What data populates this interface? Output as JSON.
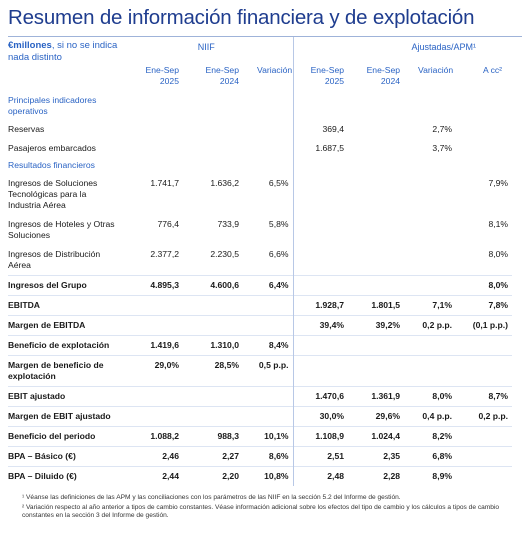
{
  "header": {
    "title": "Resumen de información financiera y de explotación",
    "unit_bold": "€millones",
    "unit_rest": ", si no se indica nada distinto",
    "group_niif": "NIIF",
    "group_adjusted": "Ajustadas/APM¹",
    "columns": [
      "Ene-Sep 2025",
      "Ene-Sep 2024",
      "Variación",
      "Ene-Sep 2025",
      "Ene-Sep 2024",
      "Variación",
      "A cc²"
    ]
  },
  "table": {
    "rows": [
      {
        "section": "Principales indicadores operativos"
      },
      {
        "label": "Reservas",
        "values": [
          null,
          null,
          null,
          "369,4",
          null,
          "2,7%",
          null
        ]
      },
      {
        "label": "Pasajeros embarcados",
        "values": [
          null,
          null,
          null,
          "1.687,5",
          null,
          "3,7%",
          null
        ]
      },
      {
        "section": "Resultados financieros"
      },
      {
        "label": "Ingresos de Soluciones Tecnológicas para la Industria Aérea",
        "values": [
          "1.741,7",
          "1.636,2",
          "6,5%",
          null,
          null,
          null,
          "7,9%"
        ]
      },
      {
        "label": "Ingresos de Hoteles y Otras Soluciones",
        "values": [
          "776,4",
          "733,9",
          "5,8%",
          null,
          null,
          null,
          "8,1%"
        ]
      },
      {
        "label": "Ingresos de Distribución Aérea",
        "values": [
          "2.377,2",
          "2.230,5",
          "6,6%",
          null,
          null,
          null,
          "8,0%"
        ]
      },
      {
        "label": "Ingresos del Grupo",
        "bold": true,
        "values": [
          "4.895,3",
          "4.600,6",
          "6,4%",
          null,
          null,
          null,
          "8,0%"
        ]
      },
      {
        "label": "EBITDA",
        "bold": true,
        "values": [
          null,
          null,
          null,
          "1.928,7",
          "1.801,5",
          "7,1%",
          "7,8%"
        ]
      },
      {
        "label": "Margen de EBITDA",
        "bold": true,
        "values": [
          null,
          null,
          null,
          "39,4%",
          "39,2%",
          "0,2 p.p.",
          "(0,1 p.p.)"
        ]
      },
      {
        "label": "Beneficio de explotación",
        "bold": true,
        "values": [
          "1.419,6",
          "1.310,0",
          "8,4%",
          null,
          null,
          null,
          null
        ]
      },
      {
        "label": "Margen de beneficio de explotación",
        "bold": true,
        "values": [
          "29,0%",
          "28,5%",
          "0,5 p.p.",
          null,
          null,
          null,
          null
        ]
      },
      {
        "label": "EBIT ajustado",
        "bold": true,
        "values": [
          null,
          null,
          null,
          "1.470,6",
          "1.361,9",
          "8,0%",
          "8,7%"
        ]
      },
      {
        "label": "Margen de EBIT ajustado",
        "bold": true,
        "values": [
          null,
          null,
          null,
          "30,0%",
          "29,6%",
          "0,4 p.p.",
          "0,2 p.p."
        ]
      },
      {
        "label": "Beneficio del periodo",
        "bold": true,
        "values": [
          "1.088,2",
          "988,3",
          "10,1%",
          "1.108,9",
          "1.024,4",
          "8,2%",
          null
        ]
      },
      {
        "label": "BPA – Básico (€)",
        "bold": true,
        "values": [
          "2,46",
          "2,27",
          "8,6%",
          "2,51",
          "2,35",
          "6,8%",
          null
        ]
      },
      {
        "label": "BPA – Diluido (€)",
        "bold": true,
        "values": [
          "2,44",
          "2,20",
          "10,8%",
          "2,48",
          "2,28",
          "8,9%",
          null
        ]
      }
    ]
  },
  "footnotes": [
    "¹ Véanse las definiciones de las APM y las conciliaciones con los parámetros de las NIIF en la sección 5.2 del Informe de gestión.",
    "² Variación respecto al año anterior a tipos de cambio constantes. Véase información adicional sobre los efectos del tipo de cambio y los cálculos a tipos de cambio constantes en la sección 3 del Informe de gestión."
  ]
}
